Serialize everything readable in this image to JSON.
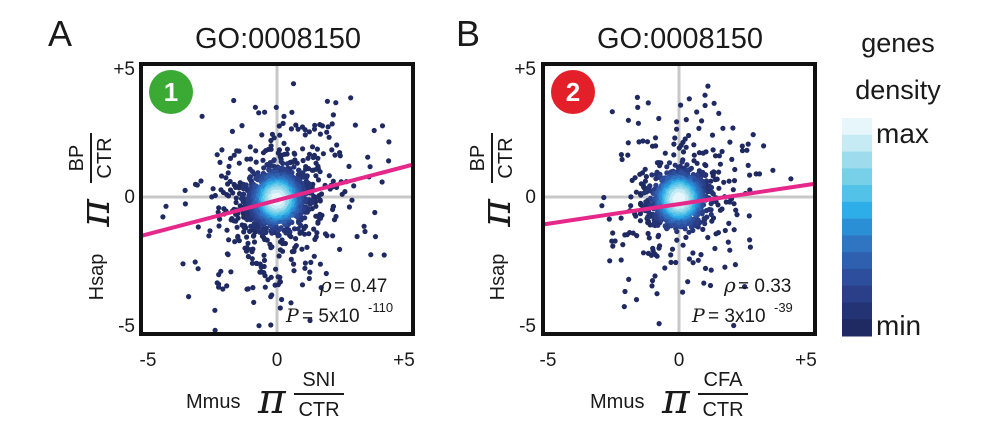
{
  "panels": [
    {
      "letter": "A",
      "title": "GO:0008150",
      "badge": {
        "text": "1",
        "color": "#3aaa35"
      },
      "y_label": {
        "prefix": "Hsap",
        "symbol": "π",
        "num": "BP",
        "den": "CTR"
      },
      "x_label": {
        "prefix": "Mmus",
        "symbol": "π",
        "num": "SNI",
        "num_color": "#3aaa35",
        "den": "CTR"
      },
      "stats": {
        "rho_sym": "ρ",
        "rho_val": "= 0.47",
        "p_sym": "P",
        "p_base": "= 5x10",
        "p_exp": "-110"
      }
    },
    {
      "letter": "B",
      "title": "GO:0008150",
      "badge": {
        "text": "2",
        "color": "#e3202a"
      },
      "y_label": {
        "prefix": "Hsap",
        "symbol": "π",
        "num": "BP",
        "den": "CTR"
      },
      "x_label": {
        "prefix": "Mmus",
        "symbol": "π",
        "num": "CFA",
        "num_color": "#e3202a",
        "den": "CTR"
      },
      "stats": {
        "rho_sym": "ρ",
        "rho_val": "= 0.33",
        "p_sym": "P",
        "p_base": "= 3x10",
        "p_exp": "-39"
      }
    }
  ],
  "colorbar": {
    "title_line1": "genes",
    "title_line2": "density",
    "max_label": "max",
    "min_label": "min",
    "colors": [
      "#e6f6fb",
      "#c6ebf4",
      "#9edbec",
      "#78cfe8",
      "#52c2e8",
      "#2eaee8",
      "#2b8fd6",
      "#2f75c2",
      "#2f60b0",
      "#2d4e9c",
      "#2a3f88",
      "#243374",
      "#1f2a62"
    ]
  },
  "chart_data": [
    {
      "type": "scatter",
      "title": "GO:0008150",
      "xlabel": "Mmus π SNI/CTR",
      "ylabel": "Hsap π BP/CTR",
      "xlim": [
        -5.3,
        5.3
      ],
      "ylim": [
        -5.3,
        5.3
      ],
      "x_ticks": [
        "-5",
        "0",
        "+5"
      ],
      "y_ticks": [
        "+5",
        "0",
        "-5"
      ],
      "fit_line": {
        "x": [
          -5.3,
          5.3
        ],
        "y": [
          -1.45,
          1.35
        ],
        "color": "#e6288a"
      },
      "rho": 0.47,
      "p_value": "5x10^-110",
      "cloud": {
        "n": 1700,
        "spread_x": 0.9,
        "spread_y": 0.8,
        "outlier_fraction": 0.25,
        "seed": 7
      },
      "grid": false,
      "color_encoding": "gene density"
    },
    {
      "type": "scatter",
      "title": "GO:0008150",
      "xlabel": "Mmus π CFA/CTR",
      "ylabel": "Hsap π BP/CTR",
      "xlim": [
        -5.3,
        5.3
      ],
      "ylim": [
        -5.3,
        5.3
      ],
      "x_ticks": [
        "-5",
        "0",
        "+5"
      ],
      "y_ticks": [
        "+5",
        "0",
        "-5"
      ],
      "fit_line": {
        "x": [
          -5.3,
          5.3
        ],
        "y": [
          -1.0,
          0.6
        ],
        "color": "#e6288a"
      },
      "rho": 0.33,
      "p_value": "3x10^-39",
      "cloud": {
        "n": 1400,
        "spread_x": 0.8,
        "spread_y": 0.75,
        "outlier_fraction": 0.22,
        "seed": 13
      },
      "grid": false,
      "color_encoding": "gene density"
    }
  ]
}
